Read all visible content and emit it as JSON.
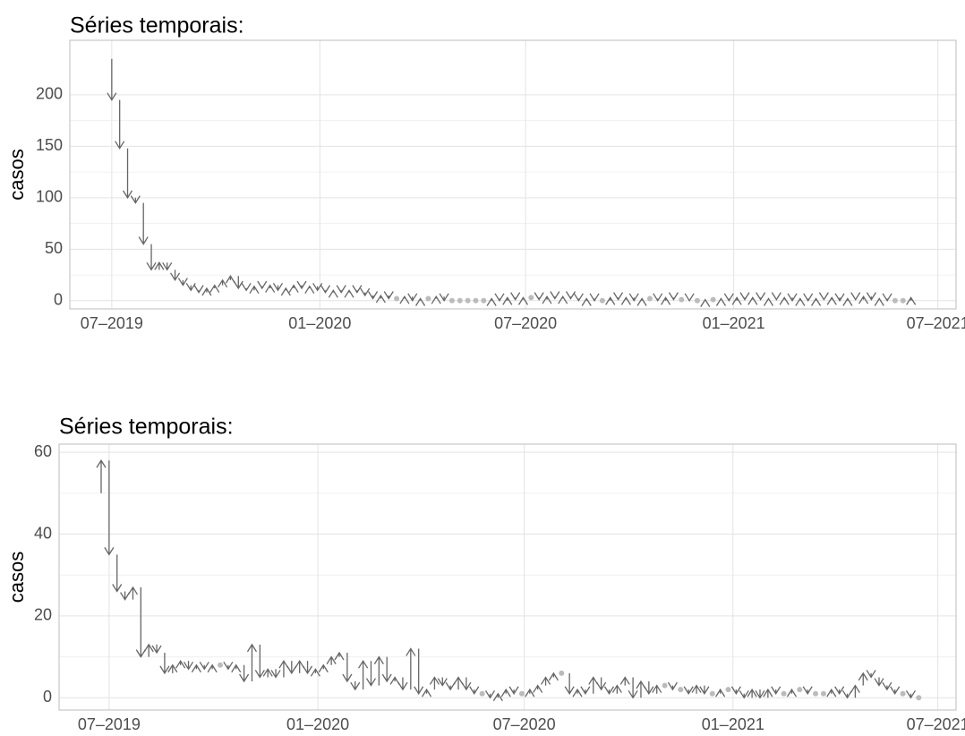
{
  "chart_data": [
    {
      "type": "arrow",
      "title": "Séries temporais:",
      "y_label": "casos",
      "color": "#666666",
      "flat_color": "#bbbbbb",
      "grid": true,
      "x": [
        0,
        1,
        2,
        3,
        4,
        5,
        6,
        7,
        8,
        9,
        10,
        11,
        12,
        13,
        14,
        15,
        16,
        17,
        18,
        19,
        20,
        21,
        22,
        23,
        24,
        25,
        26,
        27,
        28,
        29,
        30,
        31,
        32,
        33,
        34,
        35,
        36,
        37,
        38,
        39,
        40,
        41,
        42,
        43,
        44,
        45,
        46,
        47,
        48,
        49,
        50,
        51,
        52,
        53,
        54,
        55,
        56,
        57,
        58,
        59,
        60,
        61,
        62,
        63,
        64,
        65,
        66,
        67,
        68,
        69,
        70,
        71,
        72,
        73,
        74,
        75,
        76,
        77,
        78,
        79,
        80,
        81,
        82,
        83,
        84,
        85,
        86,
        87,
        88,
        89,
        90,
        91,
        92,
        93,
        94,
        95,
        96,
        97,
        98,
        99,
        100,
        101,
        102
      ],
      "values": [
        235,
        195,
        148,
        100,
        95,
        55,
        30,
        37,
        30,
        20,
        15,
        10,
        8,
        12,
        15,
        20,
        24,
        12,
        10,
        14,
        12,
        15,
        10,
        12,
        15,
        12,
        14,
        10,
        8,
        10,
        8,
        10,
        8,
        5,
        2,
        5,
        2,
        2,
        4,
        0,
        2,
        2,
        4,
        0,
        0,
        0,
        0,
        0,
        0,
        2,
        0,
        3,
        1,
        3,
        3,
        1,
        4,
        2,
        4,
        2,
        0,
        2,
        0,
        0,
        3,
        1,
        3,
        0,
        2,
        2,
        0,
        3,
        1,
        1,
        0,
        0,
        1,
        1,
        2,
        0,
        3,
        1,
        3,
        1,
        2,
        1,
        3,
        0,
        2,
        0,
        2,
        1,
        3,
        0,
        2,
        1,
        4,
        1,
        2,
        0,
        0,
        0,
        3
      ],
      "xlim": [
        -4.3,
        107.7
      ],
      "ylim": [
        -8,
        253
      ],
      "xticks": [
        {
          "value": 1,
          "label": "07–2019"
        },
        {
          "value": 27.3,
          "label": "01–2020"
        },
        {
          "value": 53.3,
          "label": "07–2020"
        },
        {
          "value": 79.6,
          "label": "01–2021"
        },
        {
          "value": 105.4,
          "label": "07–2021"
        }
      ],
      "yticks": [
        0,
        50,
        100,
        150,
        200
      ]
    },
    {
      "type": "arrow",
      "title": "Séries temporais:",
      "y_label": "casos",
      "color": "#666666",
      "flat_color": "#bbbbbb",
      "grid": true,
      "x": [
        0,
        1,
        2,
        3,
        4,
        5,
        6,
        7,
        8,
        9,
        10,
        11,
        12,
        13,
        14,
        15,
        16,
        17,
        18,
        19,
        20,
        21,
        22,
        23,
        24,
        25,
        26,
        27,
        28,
        29,
        30,
        31,
        32,
        33,
        34,
        35,
        36,
        37,
        38,
        39,
        40,
        41,
        42,
        43,
        44,
        45,
        46,
        47,
        48,
        49,
        50,
        51,
        52,
        53,
        54,
        55,
        56,
        57,
        58,
        59,
        60,
        61,
        62,
        63,
        64,
        65,
        66,
        67,
        68,
        69,
        70,
        71,
        72,
        73,
        74,
        75,
        76,
        77,
        78,
        79,
        80,
        81,
        82,
        83,
        84,
        85,
        86,
        87,
        88,
        89,
        90,
        91,
        92,
        93,
        94,
        95,
        96,
        97,
        98,
        99,
        100,
        101,
        102,
        103,
        104
      ],
      "values": [
        50,
        58,
        35,
        26,
        24,
        27,
        10,
        13,
        11,
        6,
        8,
        9,
        7,
        8,
        7,
        8,
        8,
        7,
        8,
        4,
        13,
        5,
        7,
        5,
        9,
        6,
        9,
        6,
        7,
        8,
        10,
        11,
        4,
        2,
        9,
        3,
        10,
        4,
        5,
        2,
        12,
        1,
        2,
        5,
        3,
        2,
        5,
        2,
        1,
        1,
        0,
        1,
        2,
        1,
        1,
        2,
        3,
        5,
        6,
        6,
        1,
        2,
        1,
        5,
        2,
        1,
        3,
        5,
        0,
        4,
        1,
        3,
        3,
        2,
        2,
        1,
        3,
        1,
        1,
        2,
        2,
        1,
        0,
        2,
        0,
        2,
        1,
        1,
        2,
        2,
        1,
        1,
        1,
        2,
        1,
        0,
        3,
        6,
        5,
        3,
        2,
        1,
        1,
        0,
        0
      ],
      "xlim": [
        -4.3,
        108.7
      ],
      "ylim": [
        -3,
        62
      ],
      "xticks": [
        {
          "value": 2,
          "label": "07–2019"
        },
        {
          "value": 28.3,
          "label": "01–2020"
        },
        {
          "value": 54.3,
          "label": "07–2020"
        },
        {
          "value": 80.6,
          "label": "01–2021"
        },
        {
          "value": 106.4,
          "label": "07–2021"
        }
      ],
      "yticks": [
        0,
        20,
        40,
        60
      ]
    }
  ]
}
